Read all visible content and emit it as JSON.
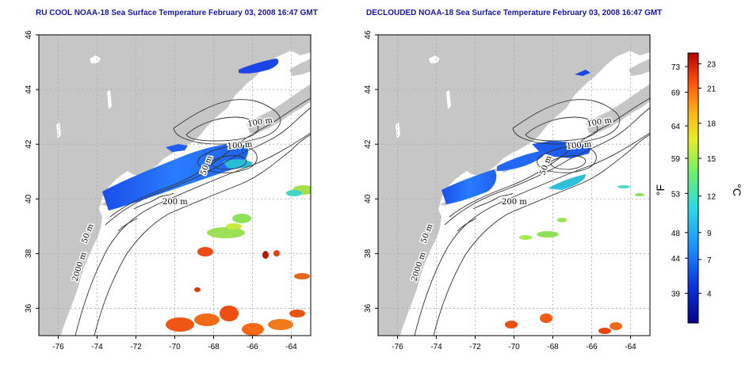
{
  "panels": [
    {
      "title": "RU COOL NOAA-18 Sea Surface Temperature February 03, 2008 16:47 GMT"
    },
    {
      "title": "DECLOUDED NOAA-18 Sea Surface Temperature February 03, 2008 16:47 GMT"
    }
  ],
  "axes": {
    "lon_ticks": [
      -76,
      -74,
      -72,
      -70,
      -68,
      -66,
      -64
    ],
    "lat_ticks": [
      36,
      38,
      40,
      42,
      44,
      46
    ],
    "lon_range": [
      -77.0,
      -63.0
    ],
    "lat_range": [
      35.0,
      46.0
    ],
    "grid": "dotted"
  },
  "contour_labels": [
    "100 m",
    "100 m",
    "50 m",
    "200 m",
    "50 m",
    "2000 m"
  ],
  "colorbar": {
    "fahrenheit_ticks": [
      "73",
      "69",
      "64",
      "59",
      "53",
      "48",
      "44",
      "39"
    ],
    "celsius_ticks": [
      "23",
      "21",
      "18",
      "15",
      "12",
      "9",
      "7",
      "4"
    ],
    "left_unit": "°F",
    "right_unit": "°C",
    "colors": [
      "#08008f",
      "#0a35e0",
      "#1f8fff",
      "#29d8e8",
      "#73f06a",
      "#e6ee28",
      "#ffb315",
      "#ff4a0a",
      "#b10000"
    ]
  },
  "colors": {
    "land": "#c6c6c6",
    "title": "#1515a8"
  }
}
